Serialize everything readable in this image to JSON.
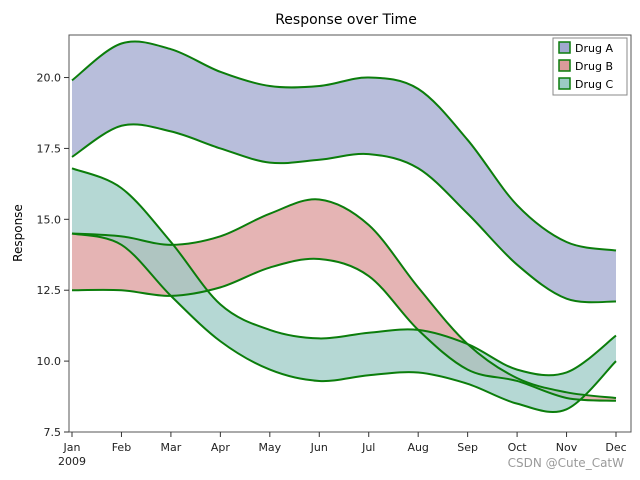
{
  "chart_data": {
    "type": "area",
    "subtype": "band",
    "title": "Response over Time",
    "xlabel": "",
    "ylabel": "Response",
    "categories": [
      "Jan",
      "Feb",
      "Mar",
      "Apr",
      "May",
      "Jun",
      "Jul",
      "Aug",
      "Sep",
      "Oct",
      "Nov",
      "Dec"
    ],
    "x_year_label": "2009",
    "ylim": [
      7.5,
      21.5
    ],
    "yticks": [
      "7.5",
      "10.0",
      "12.5",
      "15.0",
      "17.5",
      "20.0"
    ],
    "ytick_values": [
      7.5,
      10.0,
      12.5,
      15.0,
      17.5,
      20.0
    ],
    "legend_position": "top-right",
    "series": [
      {
        "name": "Drug A",
        "fill_color": "#a0a8cf",
        "line_color": "#0b7d0b",
        "upper": [
          19.9,
          21.2,
          21.0,
          20.2,
          19.7,
          19.7,
          20.0,
          19.6,
          17.8,
          15.5,
          14.2,
          13.9
        ],
        "lower": [
          17.2,
          18.3,
          18.1,
          17.5,
          17.0,
          17.1,
          17.3,
          16.8,
          15.2,
          13.4,
          12.2,
          12.1
        ]
      },
      {
        "name": "Drug B",
        "fill_color": "#dc9b9b",
        "line_color": "#0b7d0b",
        "upper": [
          14.5,
          14.4,
          14.1,
          14.4,
          15.2,
          15.7,
          14.8,
          12.6,
          10.6,
          9.4,
          8.9,
          8.7
        ],
        "lower": [
          12.5,
          12.5,
          12.3,
          12.6,
          13.3,
          13.6,
          13.0,
          11.1,
          9.7,
          9.3,
          8.7,
          8.6
        ]
      },
      {
        "name": "Drug C",
        "fill_color": "#9ccbc6",
        "line_color": "#0b7d0b",
        "upper": [
          16.8,
          16.1,
          14.2,
          12.0,
          11.1,
          10.8,
          11.0,
          11.1,
          10.6,
          9.7,
          9.6,
          10.9
        ],
        "lower": [
          14.5,
          14.1,
          12.3,
          10.7,
          9.7,
          9.3,
          9.5,
          9.6,
          9.2,
          8.5,
          8.3,
          10.0
        ]
      }
    ]
  },
  "watermark": "CSDN @Cute_CatW"
}
